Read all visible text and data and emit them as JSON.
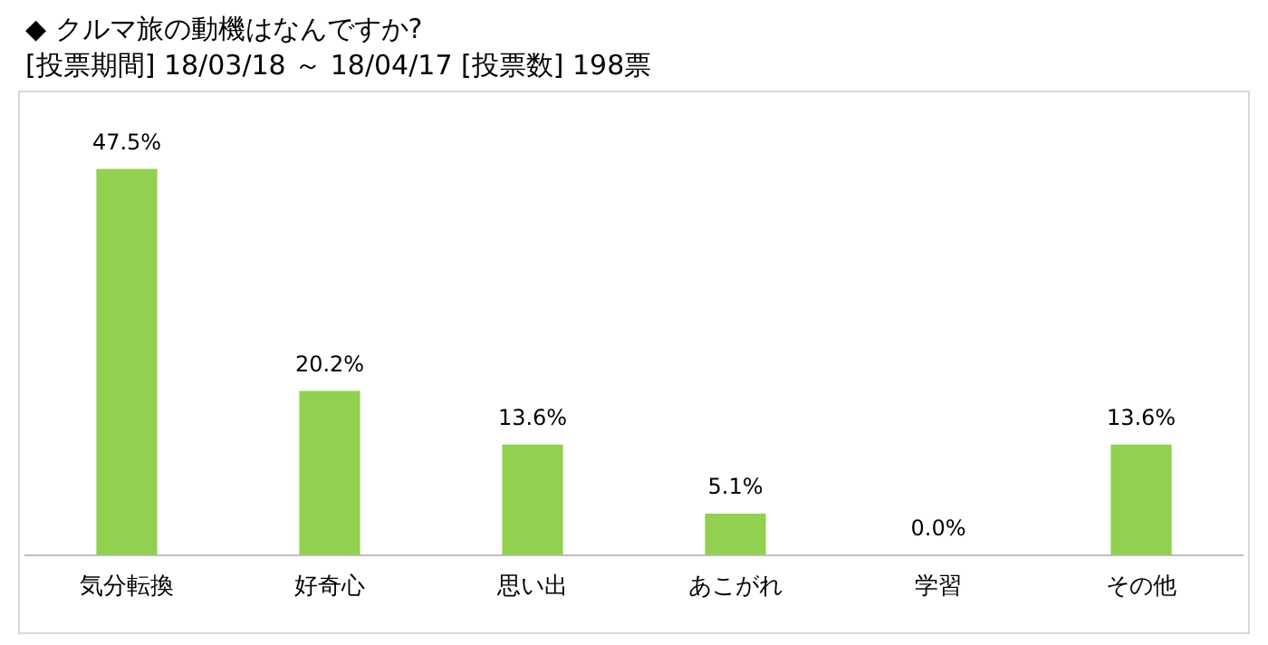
{
  "chart_data": {
    "type": "bar",
    "title": "◆ クルマ旅の動機はなんですか?",
    "subtitle": "[投票期間] 18/03/18 ～ 18/04/17 [投票数] 198票",
    "categories": [
      "気分転換",
      "好奇心",
      "思い出",
      "あこがれ",
      "学習",
      "その他"
    ],
    "values": [
      47.5,
      20.2,
      13.6,
      5.1,
      0.0,
      13.6
    ],
    "value_labels": [
      "47.5%",
      "20.2%",
      "13.6%",
      "5.1%",
      "0.0%",
      "13.6%"
    ],
    "color": "#92d050",
    "grid": false,
    "legend": false,
    "tick_labels": "x"
  }
}
